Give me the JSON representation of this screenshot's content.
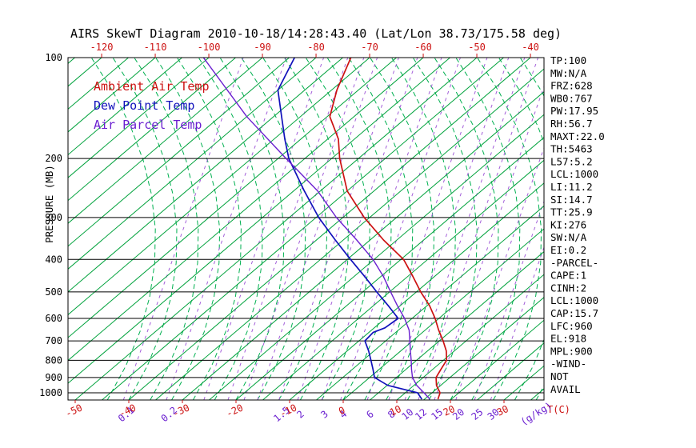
{
  "title": "AIRS SkewT Diagram 2010-10-18/14:28:43.40 (Lat/Lon 38.73/175.58 deg)",
  "colors": {
    "red": "#cc1111",
    "blue": "#1111bb",
    "purple": "#6a1fd0",
    "mixing_purple": "#a35fd9",
    "green": "#00a23c",
    "green_dashed": "#00b050",
    "black": "#000000"
  },
  "legend": [
    {
      "label": "Ambient Air Temp",
      "color_key": "red"
    },
    {
      "label": "Dew Point Temp",
      "color_key": "blue"
    },
    {
      "label": "Air Parcel Temp",
      "color_key": "purple"
    }
  ],
  "axes": {
    "y_label": "PRESSURE (MB)",
    "pressure_ticks": [
      100,
      200,
      300,
      400,
      500,
      600,
      700,
      800,
      900,
      1000
    ],
    "top_temp_ticks": [
      -120,
      -110,
      -100,
      -90,
      -80,
      -70,
      -60,
      -50,
      -40
    ],
    "bottom_temp_ticks": [
      -50,
      -40,
      -30,
      -20,
      -10,
      0,
      10,
      20,
      30
    ],
    "x_unit_label": "T(C)",
    "mixing_unit_label": "(g/kg)"
  },
  "chart_data": {
    "type": "line",
    "variant": "skew-t-log-p",
    "pressure_range_mb": [
      100,
      1050
    ],
    "top_axis_temp_range_c": [
      -120,
      -40
    ],
    "grid": {
      "isotherms_c": {
        "min": -130,
        "max": 40,
        "step": 5
      },
      "moist_adiabats_surface_t_c": {
        "min": -44,
        "max": 36,
        "step": 4
      },
      "mixing_ratio_lines": [
        {
          "label": "0.1",
          "t": -41
        },
        {
          "label": "0.2",
          "t": -33
        },
        {
          "t": -26
        },
        {
          "t": -21.5
        },
        {
          "t": -18.5
        },
        {
          "t": -16
        },
        {
          "label": "1.5",
          "t": -12
        },
        {
          "label": "2",
          "t": -8.5
        },
        {
          "label": "3",
          "t": -4
        },
        {
          "label": "4",
          "t": -0.5
        },
        {
          "label": "6",
          "t": 4.5
        },
        {
          "label": "8",
          "t": 8.5
        },
        {
          "label": "10",
          "t": 11.5
        },
        {
          "label": "12",
          "t": 14
        },
        {
          "label": "15",
          "t": 17
        },
        {
          "label": "20",
          "t": 21
        },
        {
          "label": "25",
          "t": 24.5
        },
        {
          "label": "30",
          "t": 27.5
        }
      ]
    },
    "series": [
      {
        "id": "ambient",
        "name": "Ambient Air Temp",
        "color_key": "red",
        "points_p_t": [
          [
            100,
            -73.5
          ],
          [
            125,
            -69
          ],
          [
            150,
            -64.5
          ],
          [
            175,
            -58
          ],
          [
            200,
            -53.5
          ],
          [
            250,
            -45
          ],
          [
            300,
            -36
          ],
          [
            350,
            -27.5
          ],
          [
            400,
            -19.5
          ],
          [
            450,
            -14
          ],
          [
            500,
            -9.2
          ],
          [
            550,
            -4.5
          ],
          [
            600,
            -0.7
          ],
          [
            650,
            2.5
          ],
          [
            700,
            5.7
          ],
          [
            750,
            8.5
          ],
          [
            800,
            10.6
          ],
          [
            850,
            11.5
          ],
          [
            900,
            12.4
          ],
          [
            950,
            14.2
          ],
          [
            1000,
            16.5
          ],
          [
            1045,
            17.5
          ]
        ]
      },
      {
        "id": "dewpoint",
        "name": "Dew Point Temp",
        "color_key": "blue",
        "points_p_t": [
          [
            100,
            -84
          ],
          [
            125,
            -80
          ],
          [
            150,
            -73.5
          ],
          [
            175,
            -68
          ],
          [
            200,
            -63
          ],
          [
            250,
            -53
          ],
          [
            300,
            -44.5
          ],
          [
            350,
            -36.5
          ],
          [
            400,
            -29.4
          ],
          [
            450,
            -23
          ],
          [
            500,
            -17.4
          ],
          [
            550,
            -12.2
          ],
          [
            600,
            -7.6
          ],
          [
            640,
            -8
          ],
          [
            660,
            -9.2
          ],
          [
            700,
            -8.9
          ],
          [
            750,
            -6
          ],
          [
            800,
            -3.5
          ],
          [
            850,
            -1.2
          ],
          [
            900,
            0.9
          ],
          [
            950,
            5.1
          ],
          [
            1000,
            12.3
          ],
          [
            1045,
            14.5
          ]
        ]
      },
      {
        "id": "parcel",
        "name": "Air Parcel Temp",
        "color_key": "purple",
        "points_p_t": [
          [
            100,
            -101
          ],
          [
            150,
            -80
          ],
          [
            200,
            -63.5
          ],
          [
            250,
            -50.5
          ],
          [
            300,
            -41.2
          ],
          [
            350,
            -32.5
          ],
          [
            400,
            -25.2
          ],
          [
            450,
            -19.5
          ],
          [
            500,
            -14.8
          ],
          [
            550,
            -10.5
          ],
          [
            600,
            -6.4
          ],
          [
            650,
            -3
          ],
          [
            700,
            -0.5
          ],
          [
            750,
            1.8
          ],
          [
            800,
            4
          ],
          [
            850,
            6
          ],
          [
            900,
            8
          ],
          [
            950,
            10.5
          ],
          [
            1000,
            13.5
          ],
          [
            1045,
            16
          ]
        ]
      }
    ]
  },
  "stats_panel": {
    "lines": [
      "TP:100",
      "MW:N/A",
      "FRZ:628",
      "WB0:767",
      "PW:17.95",
      "RH:56.7",
      "MAXT:22.0",
      "TH:5463",
      "L57:5.2",
      "LCL:1000",
      "LI:11.2",
      "SI:14.7",
      "TT:25.9",
      "KI:276",
      "SW:N/A",
      "EI:0.2",
      "-PARCEL-",
      "CAPE:1",
      "CINH:2",
      "LCL:1000",
      "CAP:15.7",
      "LFC:960",
      "EL:918",
      "MPL:900",
      "-WIND-",
      "NOT",
      "AVAIL"
    ]
  }
}
